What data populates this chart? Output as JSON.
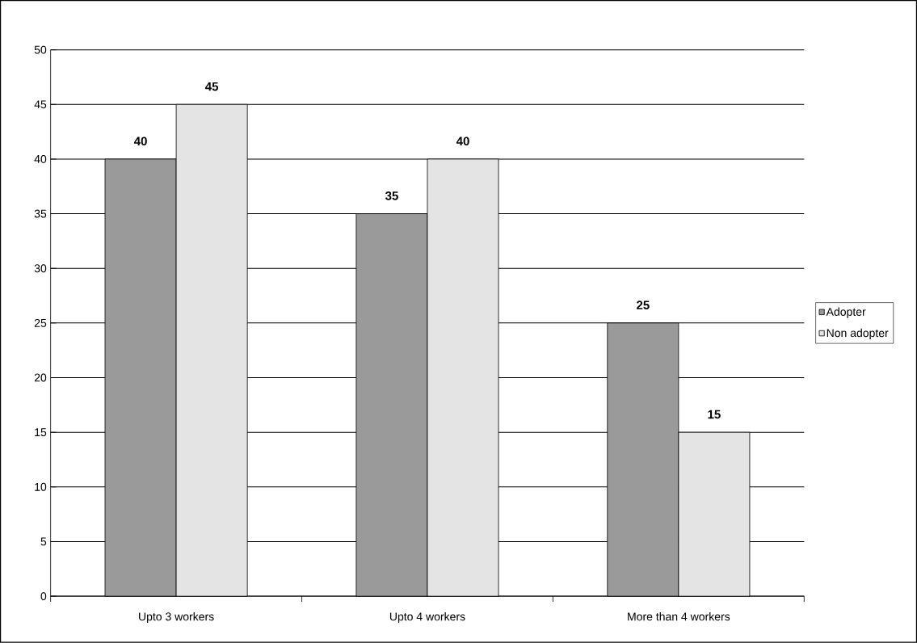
{
  "chart_data": {
    "type": "bar",
    "categories": [
      "Upto 3 workers",
      "Upto 4 workers",
      "More than 4 workers"
    ],
    "series": [
      {
        "name": "Adopter",
        "color": "#9a9a9a",
        "values": [
          40,
          35,
          25
        ]
      },
      {
        "name": "Non adopter",
        "color": "#e4e4e4",
        "values": [
          45,
          40,
          15
        ]
      }
    ],
    "ylim": [
      0,
      50
    ],
    "yticks": [
      0,
      5,
      10,
      15,
      20,
      25,
      30,
      35,
      40,
      45,
      50
    ],
    "grid": "y",
    "legend": "right",
    "data_labels": true
  }
}
